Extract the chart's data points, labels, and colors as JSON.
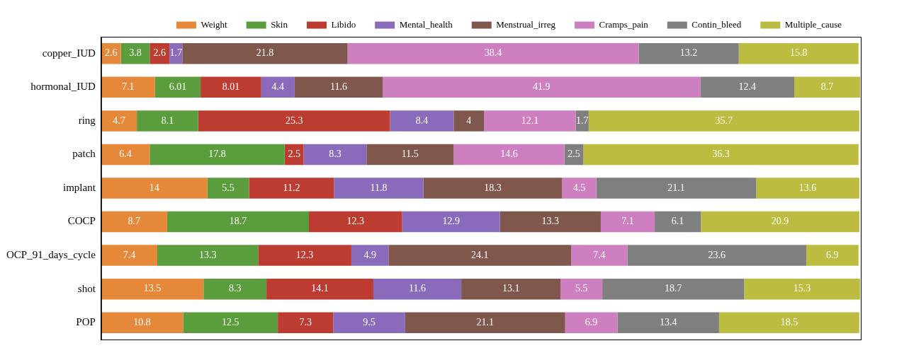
{
  "chart_data": {
    "type": "bar",
    "orientation": "horizontal",
    "stacked": true,
    "data_labels": true,
    "legend": "top",
    "grid": false,
    "tick_labels": "y",
    "categories": [
      "copper_IUD",
      "hormonal_IUD",
      "ring",
      "patch",
      "implant",
      "COCP",
      "OCP_91_days_cycle",
      "shot",
      "POP"
    ],
    "xlim": [
      0,
      100.2
    ],
    "series": [
      {
        "name": "Weight",
        "color": "#e6883a",
        "values": [
          2.6,
          7.1,
          4.7,
          6.4,
          14,
          8.7,
          7.4,
          13.5,
          10.8
        ]
      },
      {
        "name": "Skin",
        "color": "#5b9d3d",
        "values": [
          3.8,
          6.01,
          8.1,
          17.8,
          5.5,
          18.7,
          13.3,
          8.3,
          12.5
        ]
      },
      {
        "name": "Libido",
        "color": "#bd3c31",
        "values": [
          2.6,
          8.01,
          25.3,
          2.5,
          11.2,
          12.3,
          12.3,
          14.1,
          7.3
        ]
      },
      {
        "name": "Mental_health",
        "color": "#8a6bbb",
        "values": [
          1.7,
          4.4,
          8.4,
          8.3,
          11.8,
          12.9,
          4.9,
          11.6,
          9.5
        ]
      },
      {
        "name": "Menstrual_irreg",
        "color": "#80574c",
        "values": [
          21.8,
          11.6,
          4,
          11.5,
          18.3,
          13.3,
          24.1,
          13.1,
          21.1
        ]
      },
      {
        "name": "Cramps_pain",
        "color": "#cd7fc0",
        "values": [
          38.4,
          41.9,
          12.1,
          14.6,
          4.5,
          7.1,
          7.4,
          5.5,
          6.9
        ]
      },
      {
        "name": "Contin_bleed",
        "color": "#7f7f7f",
        "values": [
          13.2,
          12.4,
          1.7,
          2.5,
          21.1,
          6.1,
          23.6,
          18.7,
          13.4
        ]
      },
      {
        "name": "Multiple_cause",
        "color": "#bbbc40",
        "values": [
          15.8,
          8.7,
          35.7,
          36.3,
          13.6,
          20.9,
          6.9,
          15.3,
          18.5
        ]
      }
    ]
  }
}
